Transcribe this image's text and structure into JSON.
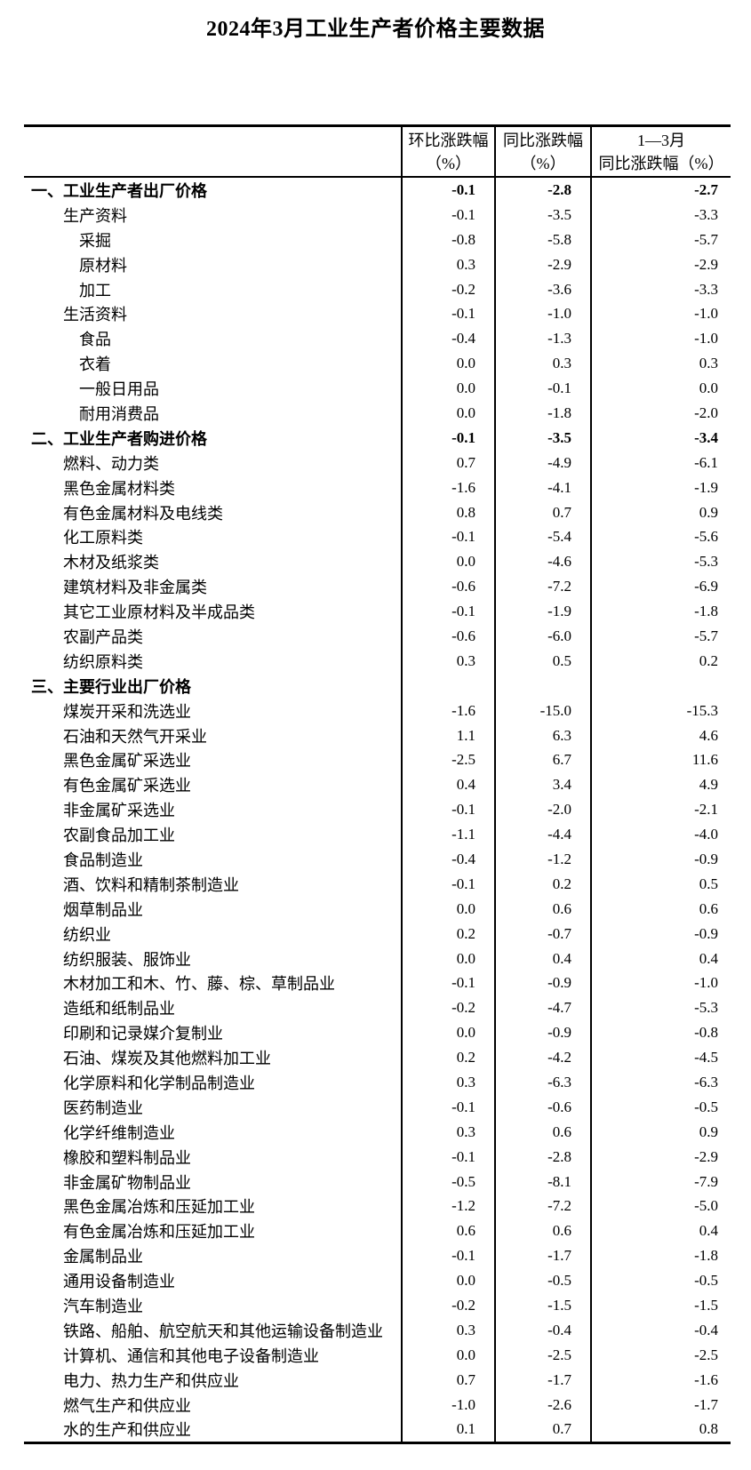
{
  "page_title": "2024年3月工业生产者价格主要数据",
  "table": {
    "columns": [
      {
        "line1": "环比涨跌幅",
        "line2": "（%）"
      },
      {
        "line1": "同比涨跌幅",
        "line2": "（%）"
      },
      {
        "line1": "1—3月",
        "line2": "同比涨跌幅（%）"
      }
    ],
    "rows": [
      {
        "label": "一、工业生产者出厂价格",
        "indent": 1,
        "bold": true,
        "mom": "-0.1",
        "yoy": "-2.8",
        "ytd": "-2.7"
      },
      {
        "label": "生产资料",
        "indent": 2,
        "bold": false,
        "mom": "-0.1",
        "yoy": "-3.5",
        "ytd": "-3.3"
      },
      {
        "label": "采掘",
        "indent": 3,
        "bold": false,
        "mom": "-0.8",
        "yoy": "-5.8",
        "ytd": "-5.7"
      },
      {
        "label": "原材料",
        "indent": 3,
        "bold": false,
        "mom": "0.3",
        "yoy": "-2.9",
        "ytd": "-2.9"
      },
      {
        "label": "加工",
        "indent": 3,
        "bold": false,
        "mom": "-0.2",
        "yoy": "-3.6",
        "ytd": "-3.3"
      },
      {
        "label": "生活资料",
        "indent": 2,
        "bold": false,
        "mom": "-0.1",
        "yoy": "-1.0",
        "ytd": "-1.0"
      },
      {
        "label": "食品",
        "indent": 3,
        "bold": false,
        "mom": "-0.4",
        "yoy": "-1.3",
        "ytd": "-1.0"
      },
      {
        "label": "衣着",
        "indent": 3,
        "bold": false,
        "mom": "0.0",
        "yoy": "0.3",
        "ytd": "0.3"
      },
      {
        "label": "一般日用品",
        "indent": 3,
        "bold": false,
        "mom": "0.0",
        "yoy": "-0.1",
        "ytd": "0.0"
      },
      {
        "label": "耐用消费品",
        "indent": 3,
        "bold": false,
        "mom": "0.0",
        "yoy": "-1.8",
        "ytd": "-2.0"
      },
      {
        "label": "二、工业生产者购进价格",
        "indent": 1,
        "bold": true,
        "mom": "-0.1",
        "yoy": "-3.5",
        "ytd": "-3.4"
      },
      {
        "label": "燃料、动力类",
        "indent": 2,
        "bold": false,
        "mom": "0.7",
        "yoy": "-4.9",
        "ytd": "-6.1"
      },
      {
        "label": "黑色金属材料类",
        "indent": 2,
        "bold": false,
        "mom": "-1.6",
        "yoy": "-4.1",
        "ytd": "-1.9"
      },
      {
        "label": "有色金属材料及电线类",
        "indent": 2,
        "bold": false,
        "mom": "0.8",
        "yoy": "0.7",
        "ytd": "0.9"
      },
      {
        "label": "化工原料类",
        "indent": 2,
        "bold": false,
        "mom": "-0.1",
        "yoy": "-5.4",
        "ytd": "-5.6"
      },
      {
        "label": "木材及纸浆类",
        "indent": 2,
        "bold": false,
        "mom": "0.0",
        "yoy": "-4.6",
        "ytd": "-5.3"
      },
      {
        "label": "建筑材料及非金属类",
        "indent": 2,
        "bold": false,
        "mom": "-0.6",
        "yoy": "-7.2",
        "ytd": "-6.9"
      },
      {
        "label": "其它工业原材料及半成品类",
        "indent": 2,
        "bold": false,
        "mom": "-0.1",
        "yoy": "-1.9",
        "ytd": "-1.8"
      },
      {
        "label": "农副产品类",
        "indent": 2,
        "bold": false,
        "mom": "-0.6",
        "yoy": "-6.0",
        "ytd": "-5.7"
      },
      {
        "label": "纺织原料类",
        "indent": 2,
        "bold": false,
        "mom": "0.3",
        "yoy": "0.5",
        "ytd": "0.2"
      },
      {
        "label": "三、主要行业出厂价格",
        "indent": 1,
        "bold": true,
        "mom": "",
        "yoy": "",
        "ytd": ""
      },
      {
        "label": "煤炭开采和洗选业",
        "indent": 2,
        "bold": false,
        "mom": "-1.6",
        "yoy": "-15.0",
        "ytd": "-15.3"
      },
      {
        "label": "石油和天然气开采业",
        "indent": 2,
        "bold": false,
        "mom": "1.1",
        "yoy": "6.3",
        "ytd": "4.6"
      },
      {
        "label": "黑色金属矿采选业",
        "indent": 2,
        "bold": false,
        "mom": "-2.5",
        "yoy": "6.7",
        "ytd": "11.6"
      },
      {
        "label": "有色金属矿采选业",
        "indent": 2,
        "bold": false,
        "mom": "0.4",
        "yoy": "3.4",
        "ytd": "4.9"
      },
      {
        "label": "非金属矿采选业",
        "indent": 2,
        "bold": false,
        "mom": "-0.1",
        "yoy": "-2.0",
        "ytd": "-2.1"
      },
      {
        "label": "农副食品加工业",
        "indent": 2,
        "bold": false,
        "mom": "-1.1",
        "yoy": "-4.4",
        "ytd": "-4.0"
      },
      {
        "label": "食品制造业",
        "indent": 2,
        "bold": false,
        "mom": "-0.4",
        "yoy": "-1.2",
        "ytd": "-0.9"
      },
      {
        "label": "酒、饮料和精制茶制造业",
        "indent": 2,
        "bold": false,
        "mom": "-0.1",
        "yoy": "0.2",
        "ytd": "0.5"
      },
      {
        "label": "烟草制品业",
        "indent": 2,
        "bold": false,
        "mom": "0.0",
        "yoy": "0.6",
        "ytd": "0.6"
      },
      {
        "label": "纺织业",
        "indent": 2,
        "bold": false,
        "mom": "0.2",
        "yoy": "-0.7",
        "ytd": "-0.9"
      },
      {
        "label": "纺织服装、服饰业",
        "indent": 2,
        "bold": false,
        "mom": "0.0",
        "yoy": "0.4",
        "ytd": "0.4"
      },
      {
        "label": "木材加工和木、竹、藤、棕、草制品业",
        "indent": 2,
        "bold": false,
        "mom": "-0.1",
        "yoy": "-0.9",
        "ytd": "-1.0"
      },
      {
        "label": "造纸和纸制品业",
        "indent": 2,
        "bold": false,
        "mom": "-0.2",
        "yoy": "-4.7",
        "ytd": "-5.3"
      },
      {
        "label": "印刷和记录媒介复制业",
        "indent": 2,
        "bold": false,
        "mom": "0.0",
        "yoy": "-0.9",
        "ytd": "-0.8"
      },
      {
        "label": "石油、煤炭及其他燃料加工业",
        "indent": 2,
        "bold": false,
        "mom": "0.2",
        "yoy": "-4.2",
        "ytd": "-4.5"
      },
      {
        "label": "化学原料和化学制品制造业",
        "indent": 2,
        "bold": false,
        "mom": "0.3",
        "yoy": "-6.3",
        "ytd": "-6.3"
      },
      {
        "label": "医药制造业",
        "indent": 2,
        "bold": false,
        "mom": "-0.1",
        "yoy": "-0.6",
        "ytd": "-0.5"
      },
      {
        "label": "化学纤维制造业",
        "indent": 2,
        "bold": false,
        "mom": "0.3",
        "yoy": "0.6",
        "ytd": "0.9"
      },
      {
        "label": "橡胶和塑料制品业",
        "indent": 2,
        "bold": false,
        "mom": "-0.1",
        "yoy": "-2.8",
        "ytd": "-2.9"
      },
      {
        "label": "非金属矿物制品业",
        "indent": 2,
        "bold": false,
        "mom": "-0.5",
        "yoy": "-8.1",
        "ytd": "-7.9"
      },
      {
        "label": "黑色金属冶炼和压延加工业",
        "indent": 2,
        "bold": false,
        "mom": "-1.2",
        "yoy": "-7.2",
        "ytd": "-5.0"
      },
      {
        "label": "有色金属冶炼和压延加工业",
        "indent": 2,
        "bold": false,
        "mom": "0.6",
        "yoy": "0.6",
        "ytd": "0.4"
      },
      {
        "label": "金属制品业",
        "indent": 2,
        "bold": false,
        "mom": "-0.1",
        "yoy": "-1.7",
        "ytd": "-1.8"
      },
      {
        "label": "通用设备制造业",
        "indent": 2,
        "bold": false,
        "mom": "0.0",
        "yoy": "-0.5",
        "ytd": "-0.5"
      },
      {
        "label": "汽车制造业",
        "indent": 2,
        "bold": false,
        "mom": "-0.2",
        "yoy": "-1.5",
        "ytd": "-1.5"
      },
      {
        "label": "铁路、船舶、航空航天和其他运输设备制造业",
        "indent": 2,
        "bold": false,
        "mom": "0.3",
        "yoy": "-0.4",
        "ytd": "-0.4"
      },
      {
        "label": "计算机、通信和其他电子设备制造业",
        "indent": 2,
        "bold": false,
        "mom": "0.0",
        "yoy": "-2.5",
        "ytd": "-2.5"
      },
      {
        "label": "电力、热力生产和供应业",
        "indent": 2,
        "bold": false,
        "mom": "0.7",
        "yoy": "-1.7",
        "ytd": "-1.6"
      },
      {
        "label": "燃气生产和供应业",
        "indent": 2,
        "bold": false,
        "mom": "-1.0",
        "yoy": "-2.6",
        "ytd": "-1.7"
      },
      {
        "label": "水的生产和供应业",
        "indent": 2,
        "bold": false,
        "mom": "0.1",
        "yoy": "0.7",
        "ytd": "0.8"
      }
    ]
  },
  "colors": {
    "text": "#000000",
    "background": "#ffffff",
    "border": "#000000"
  }
}
